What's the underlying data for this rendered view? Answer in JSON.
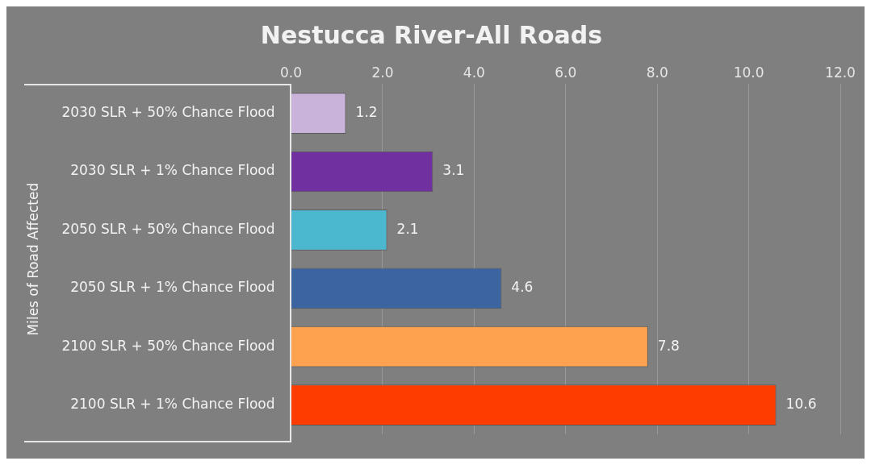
{
  "chart_data": {
    "type": "bar",
    "orientation": "horizontal",
    "title": "Nestucca River-All Roads",
    "ylabel": "Miles of Road Affected",
    "categories": [
      "2030 SLR + 50% Chance Flood",
      "2030 SLR + 1% Chance Flood",
      "2050 SLR + 50% Chance Flood",
      "2050 SLR + 1% Chance Flood",
      "2100 SLR + 50% Chance Flood",
      "2100 SLR + 1% Chance Flood"
    ],
    "values": [
      1.2,
      3.1,
      2.1,
      4.6,
      7.8,
      10.6
    ],
    "colors": [
      "#c9b3db",
      "#7030a0",
      "#4bb8cf",
      "#3b64a0",
      "#ffa24f",
      "#ff3c00"
    ],
    "xlim": [
      0,
      12
    ],
    "xticks": [
      {
        "value": 0,
        "label": "0.0"
      },
      {
        "value": 2,
        "label": "2.0"
      },
      {
        "value": 4,
        "label": "4.0"
      },
      {
        "value": 6,
        "label": "6.0"
      },
      {
        "value": 8,
        "label": "8.0"
      },
      {
        "value": 10,
        "label": "10.0"
      },
      {
        "value": 12,
        "label": "12.0"
      }
    ],
    "grid": "x",
    "legend": false,
    "data_labels": true
  }
}
